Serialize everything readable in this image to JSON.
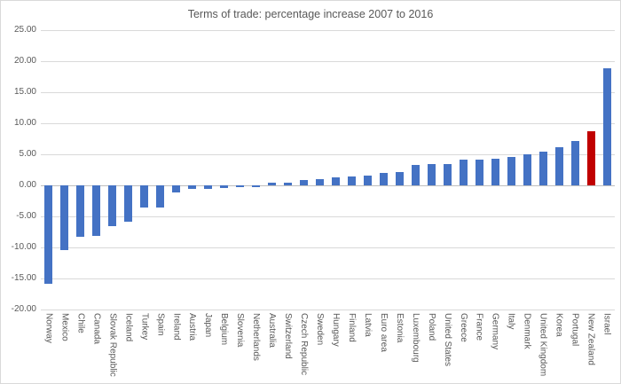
{
  "chart_data": {
    "type": "bar",
    "title": "Terms of trade: percentage increase 2007 to 2016",
    "categories": [
      "Norway",
      "Mexico",
      "Chile",
      "Canada",
      "Slovak Republic",
      "Iceland",
      "Turkey",
      "Spain",
      "Ireland",
      "Austria",
      "Japan",
      "Belgium",
      "Slovenia",
      "Netherlands",
      "Australia",
      "Switzerland",
      "Czech Republic",
      "Sweden",
      "Hungary",
      "Finland",
      "Latvia",
      "Euro area",
      "Estonia",
      "Luxembourg",
      "Poland",
      "United States",
      "Greece",
      "France",
      "Germany",
      "Italy",
      "Denmark",
      "United Kingdom",
      "Korea",
      "Portugal",
      "New Zealand",
      "Israel"
    ],
    "values": [
      -15.9,
      -10.4,
      -8.3,
      -8.2,
      -6.5,
      -5.9,
      -3.6,
      -3.5,
      -1.1,
      -0.5,
      -0.5,
      -0.4,
      -0.3,
      -0.3,
      0.4,
      0.5,
      0.9,
      1.0,
      1.3,
      1.4,
      1.6,
      2.0,
      2.1,
      3.3,
      3.4,
      3.5,
      4.1,
      4.2,
      4.3,
      4.6,
      5.0,
      5.5,
      6.1,
      7.1,
      8.7,
      18.9
    ],
    "highlight_category": "New Zealand",
    "bar_color": "#4472C4",
    "highlight_color": "#C00000",
    "xlabel": "",
    "ylabel": "",
    "ylim": [
      -20,
      25
    ],
    "ytick_step": 5,
    "yticks": [
      "25.00",
      "20.00",
      "15.00",
      "10.00",
      "5.00",
      "0.00",
      "-5.00",
      "-10.00",
      "-15.00",
      "-20.00"
    ],
    "grid": "horizontal",
    "legend_position": "none"
  },
  "colors": {
    "text": "#595959",
    "gridline": "#D9D9D9",
    "zero_axis": "#BFBFBF",
    "background": "#FFFFFF",
    "frame_border": "#D9D9D9"
  }
}
